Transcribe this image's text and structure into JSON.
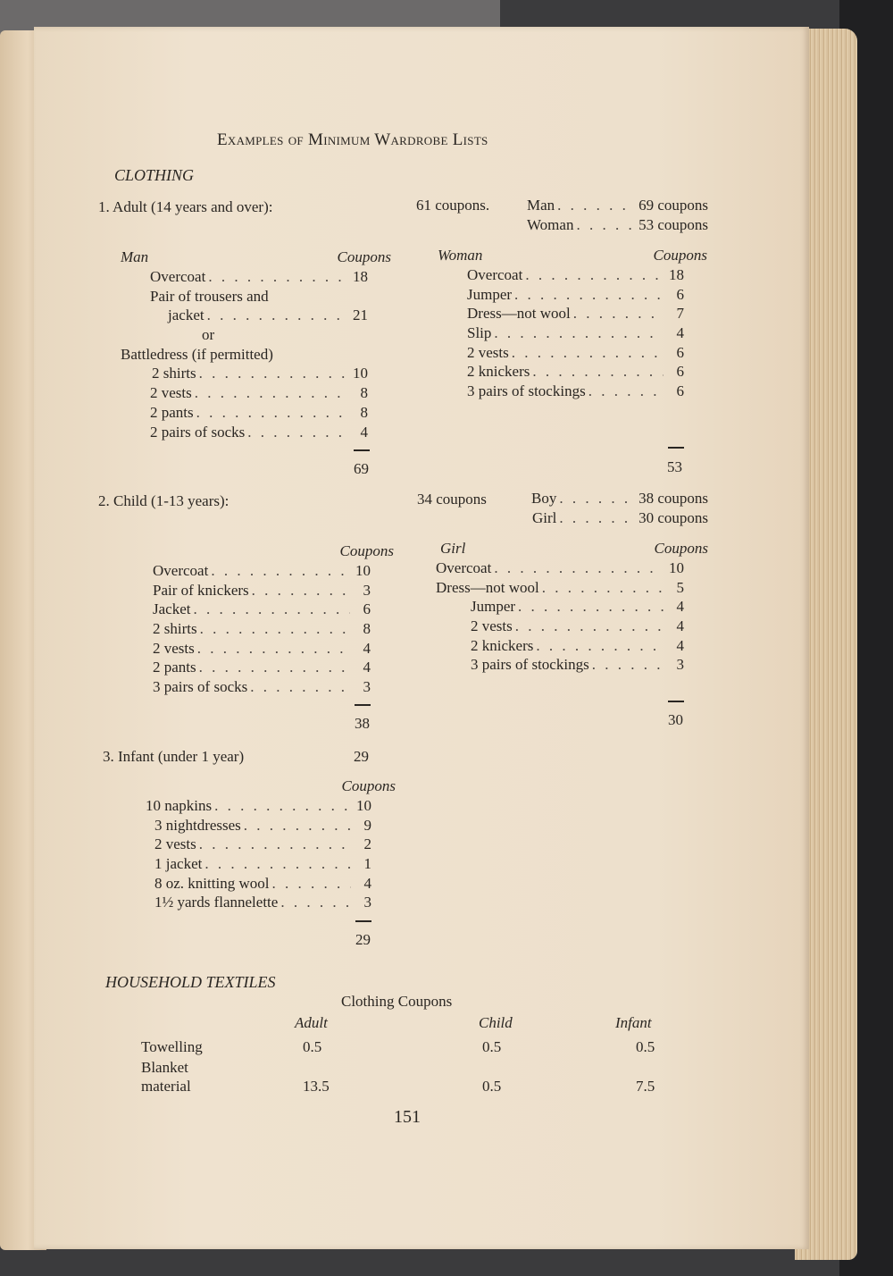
{
  "title": "Examples of Minimum Wardrobe Lists",
  "clothing_heading": "CLOTHING",
  "adult": {
    "heading": "1. Adult (14 years and over):",
    "coupons": "61  coupons.",
    "man_line": {
      "label": "Man",
      "value": "69 coupons"
    },
    "woman_line": {
      "label": "Woman",
      "value": "53 coupons"
    },
    "man": {
      "header": "Man",
      "coupons_header": "Coupons",
      "items": [
        {
          "label": "Overcoat",
          "value": "18"
        },
        {
          "label": "Pair of trousers and",
          "value": ""
        },
        {
          "label": "jacket",
          "value": "21"
        },
        {
          "label": "or",
          "value": ""
        },
        {
          "label": "Battledress  (if  permitted)",
          "value": ""
        },
        {
          "label": "2 shirts",
          "value": "10"
        },
        {
          "label": "2 vests",
          "value": "8"
        },
        {
          "label": "2 pants",
          "value": "8"
        },
        {
          "label": "2 pairs  of  socks",
          "value": "4"
        }
      ],
      "total": "69"
    },
    "woman": {
      "header": "Woman",
      "coupons_header": "Coupons",
      "items": [
        {
          "label": "Overcoat",
          "value": "18"
        },
        {
          "label": "Jumper",
          "value": "6"
        },
        {
          "label": "Dress—not wool",
          "value": "7"
        },
        {
          "label": "Slip",
          "value": "4"
        },
        {
          "label": "2 vests",
          "value": "6"
        },
        {
          "label": "2 knickers",
          "value": "6"
        },
        {
          "label": "3  pairs  of  stockings",
          "value": "6"
        }
      ],
      "total": "53"
    }
  },
  "child": {
    "heading": "2. Child (1-13 years):",
    "coupons": "34 coupons",
    "boy_line": {
      "label": "Boy",
      "value": "38 coupons"
    },
    "girl_line": {
      "label": "Girl",
      "value": "30 coupons"
    },
    "boy": {
      "coupons_header": "Coupons",
      "items": [
        {
          "label": "Overcoat",
          "value": "10"
        },
        {
          "label": "Pair  of  knickers",
          "value": "3"
        },
        {
          "label": "Jacket",
          "value": "6"
        },
        {
          "label": "2 shirts",
          "value": "8"
        },
        {
          "label": "2 vests",
          "value": "4"
        },
        {
          "label": "2 pants",
          "value": "4"
        },
        {
          "label": "3 pairs  of  socks",
          "value": "3"
        }
      ],
      "total": "38"
    },
    "girl": {
      "header": "Girl",
      "coupons_header": "Coupons",
      "items": [
        {
          "label": "Overcoat",
          "value": "10"
        },
        {
          "label": "Dress—not wool",
          "value": "5"
        },
        {
          "label": "Jumper",
          "value": "4"
        },
        {
          "label": "2 vests",
          "value": "4"
        },
        {
          "label": "2 knickers",
          "value": "4"
        },
        {
          "label": "3 pairs of stockings",
          "value": "3"
        }
      ],
      "total": "30"
    }
  },
  "infant": {
    "heading": "3. Infant (under 1 year)",
    "coupons": "29",
    "coupons_header": "Coupons",
    "items": [
      {
        "label": "10 napkins",
        "value": "10"
      },
      {
        "label": "3 nightdresses",
        "value": "9"
      },
      {
        "label": "2 vests",
        "value": "2"
      },
      {
        "label": "1 jacket",
        "value": "1"
      },
      {
        "label": "8  oz.  knitting  wool",
        "value": "4"
      },
      {
        "label": "1½  yards  flannelette",
        "value": "3"
      }
    ],
    "total": "29"
  },
  "household": {
    "heading": "HOUSEHOLD  TEXTILES",
    "subheading": "Clothing  Coupons",
    "columns": [
      "Adult",
      "Child",
      "Infant"
    ],
    "rows": [
      {
        "label": "Towelling",
        "values": [
          "0.5",
          "0.5",
          "0.5"
        ]
      },
      {
        "label": "Blanket material",
        "label_line1": "Blanket",
        "label_line2": "material",
        "values": [
          "13.5",
          "0.5",
          "7.5"
        ]
      }
    ]
  },
  "page_number": "151"
}
